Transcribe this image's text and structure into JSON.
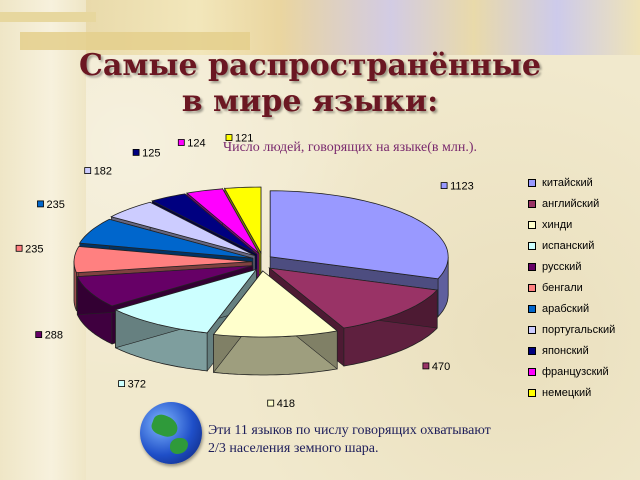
{
  "slide": {
    "title_line1": "Самые распространённые",
    "title_line2": "в мире языки:",
    "subtitle": "Число людей, говорящих на языке(в млн.).",
    "note_line1": "Эти 11 языков по числу говорящих охватывают",
    "note_line2": "2/3 населения земного шара."
  },
  "chart_data": {
    "type": "pie",
    "title": "Число людей, говорящих на языке(в млн.).",
    "legend_position": "right",
    "categories": [
      "китайский",
      "английский",
      "хинди",
      "испанский",
      "русский",
      "бенгали",
      "арабский",
      "португальский",
      "японский",
      "французский",
      "немецкий"
    ],
    "values": [
      1123,
      470,
      418,
      372,
      288,
      235,
      235,
      182,
      125,
      124,
      121
    ],
    "colors": [
      "#9999ff",
      "#993366",
      "#ffffcc",
      "#ccffff",
      "#660066",
      "#ff8080",
      "#0066cc",
      "#ccccff",
      "#000080",
      "#ff00ff",
      "#ffff00"
    ],
    "style": "3d-exploded"
  }
}
